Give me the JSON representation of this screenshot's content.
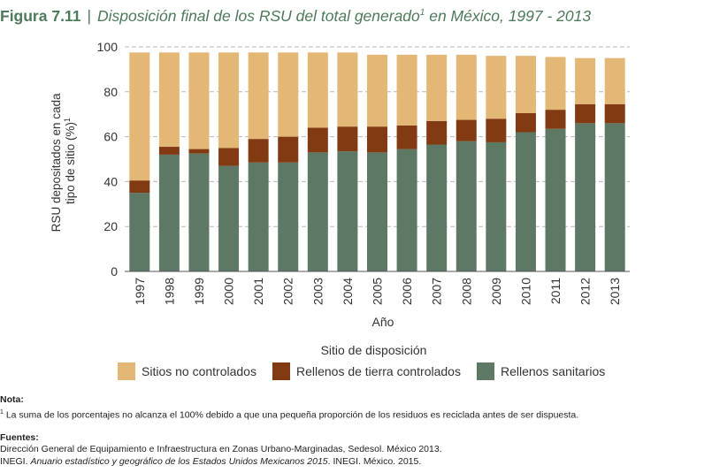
{
  "figure": {
    "label": "Figura 7.11",
    "separator": "|",
    "title": "Disposición final de los RSU del total generado",
    "title_sup": "1",
    "title_suffix": " en México, 1997 - 2013"
  },
  "colors": {
    "sitios_no_controlados": "#e3b775",
    "rellenos_tierra_controlados": "#823a13",
    "rellenos_sanitarios": "#5e7866",
    "grid": "#b9b9b9",
    "title": "#4d7a5a"
  },
  "chart_data": {
    "type": "bar",
    "stacked": true,
    "categories": [
      "1997",
      "1998",
      "1999",
      "2000",
      "2001",
      "2002",
      "2003",
      "2004",
      "2005",
      "2006",
      "2007",
      "2008",
      "2009",
      "2010",
      "2011",
      "2012",
      "2013"
    ],
    "series": [
      {
        "name": "Rellenos sanitarios",
        "color": "#5e7866",
        "values": [
          35.0,
          52.0,
          52.5,
          47.0,
          48.5,
          48.5,
          53.0,
          53.5,
          53.0,
          54.5,
          56.5,
          58.0,
          57.5,
          62.0,
          63.5,
          66.0,
          66.0
        ]
      },
      {
        "name": "Rellenos de tierra controlados",
        "color": "#823a13",
        "values": [
          5.5,
          3.5,
          2.0,
          8.0,
          10.5,
          11.5,
          11.0,
          11.0,
          11.5,
          10.5,
          10.5,
          9.5,
          10.5,
          8.5,
          8.5,
          8.5,
          8.5
        ]
      },
      {
        "name": "Sitios no controlados",
        "color": "#e3b775",
        "values": [
          57.0,
          42.0,
          43.0,
          42.5,
          38.5,
          37.5,
          33.5,
          33.0,
          32.0,
          31.5,
          29.5,
          29.0,
          28.0,
          25.5,
          23.5,
          20.5,
          20.5
        ]
      }
    ],
    "xlabel": "Año",
    "ylabel_line1": "RSU depositados en cada",
    "ylabel_line2": "tipo de sitio (%)",
    "ylabel_sup": "1",
    "ylim": [
      0,
      100
    ],
    "yticks": [
      0,
      20,
      40,
      60,
      80,
      100
    ],
    "grid": true,
    "legend_title": "Sitio de disposición",
    "legend_placement": "bottom",
    "legend": [
      "Sitios no controlados",
      "Rellenos de tierra controlados",
      "Rellenos sanitarios"
    ]
  },
  "notes": {
    "nota_header": "Nota:",
    "nota_sup": "1",
    "nota_text": " La suma de los porcentajes no alcanza el 100% debido a que una pequeña proporción de los residuos es reciclada antes de ser dispuesta.",
    "fuentes_header": "Fuentes:",
    "fuente_1": "Dirección General de Equipamiento e Infraestructura en Zonas Urbano-Marginadas, Sedesol. México 2013.",
    "fuente_2_prefix": "INEGI. ",
    "fuente_2_italic": "Anuario estadístico y geográfico de los Estados Unidos Mexicanos 2015",
    "fuente_2_suffix": ". INEGI. México. 2015."
  }
}
